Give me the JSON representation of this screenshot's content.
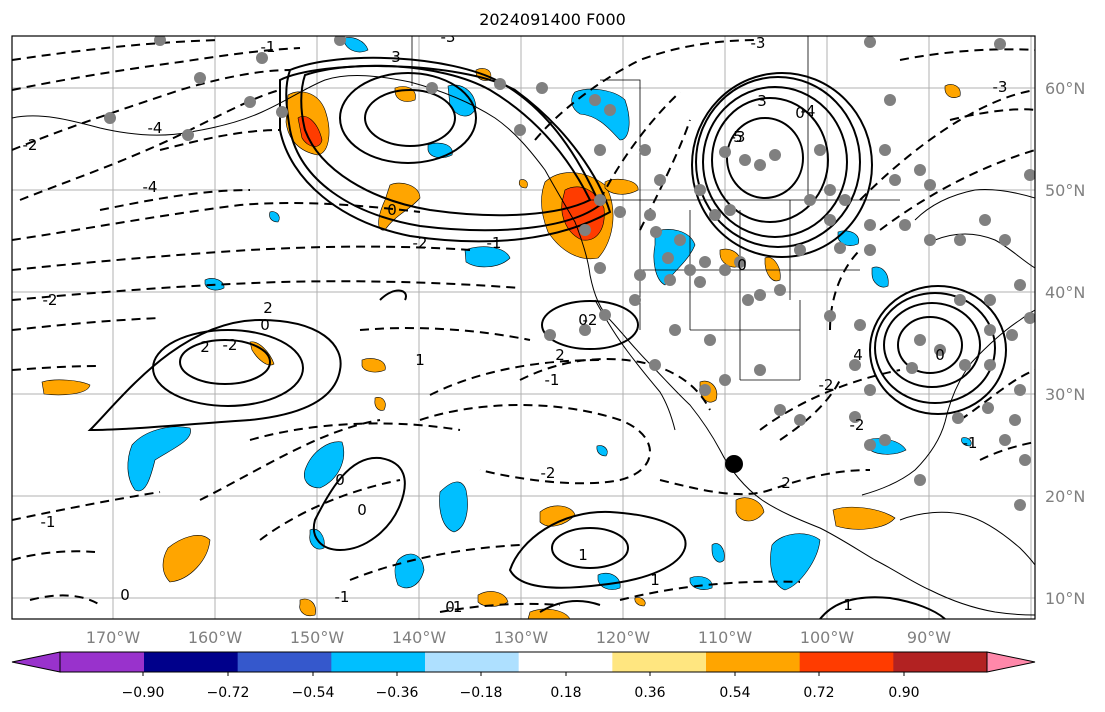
{
  "title": "2024091400 F000",
  "map": {
    "lat_labels": [
      "60°N",
      "50°N",
      "40°N",
      "30°N",
      "20°N",
      "10°N"
    ],
    "lon_labels": [
      "170°W",
      "160°W",
      "150°W",
      "140°W",
      "130°W",
      "120°W",
      "110°W",
      "100°W",
      "90°W"
    ],
    "contour_labels": [
      "-1",
      "3",
      "-3",
      "-3",
      "-3",
      "3",
      "-4",
      "-4",
      "-3",
      "5",
      "0",
      "-4",
      "-2",
      "0",
      "-2",
      "-1",
      "-2",
      "2",
      "0",
      "0",
      "-2",
      "-2",
      "2",
      "0",
      "1",
      "2",
      "-1",
      "4",
      "-2",
      "0",
      "-2",
      "1",
      "-1",
      "-2",
      "2",
      "-1",
      "0",
      "0",
      "1",
      "-1",
      "1",
      "0",
      "-1",
      "0"
    ]
  },
  "colorbar": {
    "tick_labels": [
      "−0.90",
      "−0.72",
      "−0.54",
      "−0.36",
      "−0.18",
      "0.18",
      "0.36",
      "0.54",
      "0.72",
      "0.90"
    ],
    "colors": [
      "#9932cc",
      "#00008b",
      "#3558cc",
      "#00bfff",
      "#aee0ff",
      "#ffffff",
      "#ffe680",
      "#ffa500",
      "#ff3c00",
      "#b22222",
      "#ff88aa"
    ]
  }
}
